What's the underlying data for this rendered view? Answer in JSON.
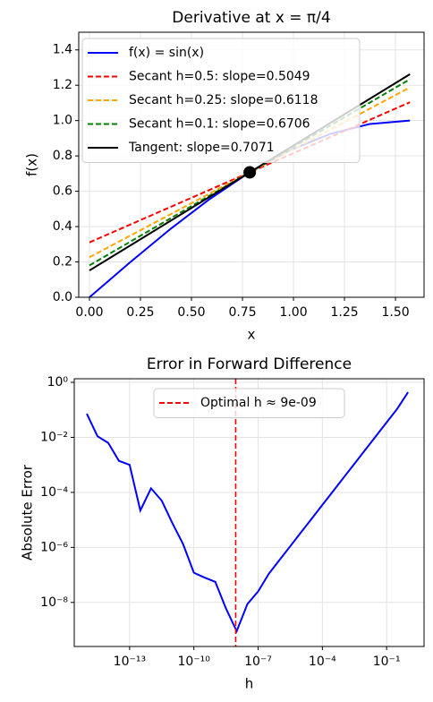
{
  "chart_data": [
    {
      "type": "line",
      "title": "Derivative at x = π/4",
      "x_label": "x",
      "y_label": "f(x)",
      "xlim": [
        -0.0526,
        1.64
      ],
      "ylim": [
        0,
        1.5
      ],
      "xticks": [
        {
          "value": 0,
          "label": "0.00"
        },
        0.25,
        {
          "value": 0.5,
          "label": "0.50"
        },
        0.75,
        {
          "value": 1,
          "label": "1.00"
        },
        1.25,
        {
          "value": 1.5,
          "label": "1.50"
        }
      ],
      "yticks": [
        {
          "value": 0,
          "label": "0.0"
        },
        0.2,
        0.4,
        0.6,
        0.8,
        {
          "value": 1,
          "label": "1.0"
        },
        1.2,
        1.4
      ],
      "grid": true,
      "legend": "upper left",
      "series": [
        {
          "name": "f(x) = sin(x)",
          "color": "#0000ff",
          "linestyle": "-",
          "x": [
            0,
            0.1963,
            0.3927,
            0.589,
            0.7854,
            0.9817,
            1.1781,
            1.3744,
            1.5708
          ],
          "values": [
            0,
            0.1951,
            0.3827,
            0.5556,
            0.7071,
            0.8315,
            0.9239,
            0.9808,
            1.0
          ]
        },
        {
          "name": "Secant h=0.5: slope=0.5049",
          "color": "#ff0000",
          "linestyle": "--",
          "x": [
            0,
            1.5708
          ],
          "values": [
            0.3105,
            1.1037
          ]
        },
        {
          "name": "Secant h=0.25: slope=0.6118",
          "color": "#ffa500",
          "linestyle": "--",
          "x": [
            0,
            1.5708
          ],
          "values": [
            0.2266,
            1.1876
          ]
        },
        {
          "name": "Secant h=0.1: slope=0.6706",
          "color": "#008000",
          "linestyle": "--",
          "x": [
            0,
            1.5708
          ],
          "values": [
            0.1804,
            1.2338
          ]
        },
        {
          "name": "Tangent: slope=0.7071",
          "color": "#000000",
          "linestyle": "-",
          "x": [
            0,
            1.5708
          ],
          "values": [
            0.1517,
            1.2625
          ]
        }
      ],
      "point": {
        "x": 0.7854,
        "y": 0.7071,
        "color": "#000000"
      }
    },
    {
      "type": "line",
      "title": "Error in Forward Difference",
      "x_label": "h",
      "y_label": "Absolute Error",
      "xlog": true,
      "ylog": true,
      "xlim": [
        2.6e-16,
        5.6
      ],
      "ylim": [
        2.5e-10,
        1.35
      ],
      "xticks": [
        {
          "value": 1e-13,
          "label": "10⁻¹³"
        },
        {
          "value": 1e-10,
          "label": "10⁻¹⁰"
        },
        {
          "value": 1e-07,
          "label": "10⁻⁷"
        },
        {
          "value": 0.0001,
          "label": "10⁻⁴"
        },
        {
          "value": 0.1,
          "label": "10⁻¹"
        }
      ],
      "yticks": [
        {
          "value": 1e-08,
          "label": "10⁻⁸"
        },
        {
          "value": 1e-06,
          "label": "10⁻⁶"
        },
        {
          "value": 0.0001,
          "label": "10⁻⁴"
        },
        {
          "value": 0.01,
          "label": "10⁻²"
        },
        {
          "value": 1,
          "label": "10⁰"
        }
      ],
      "grid": true,
      "legend": "upper center",
      "series": [
        {
          "name": null,
          "color": "#0000ff",
          "linestyle": "-",
          "x": [
            1e-15,
            3.16e-15,
            1e-14,
            3.16e-14,
            1e-13,
            3.16e-13,
            1e-12,
            3.16e-12,
            1e-11,
            3.16e-11,
            1e-10,
            3.16e-10,
            1e-09,
            3.16e-09,
            1e-08,
            3.16e-08,
            1e-07,
            3.16e-07,
            1e-06,
            3.16e-06,
            1e-05,
            3.16e-05,
            0.0001,
            0.000316,
            0.001,
            0.00316,
            0.01,
            0.0316,
            0.1,
            0.316,
            1
          ],
          "values": [
            0.072,
            0.011,
            0.0063,
            0.0014,
            0.001,
            2.2e-05,
            0.00014,
            5e-05,
            7.5e-06,
            1.3e-06,
            1.2e-07,
            8e-08,
            5.6e-08,
            6e-09,
            9e-10,
            8.7e-09,
            2.5e-08,
            1.1e-07,
            3.5e-07,
            1.1e-06,
            3.5e-06,
            1.1e-05,
            3.5e-05,
            0.00011,
            0.00035,
            0.0011,
            0.0035,
            0.011,
            0.035,
            0.11,
            0.437
          ]
        }
      ],
      "vline": {
        "x": 9e-09,
        "name": "Optimal h ≈ 9e-09",
        "color": "#ff0000",
        "linestyle": "--"
      }
    }
  ]
}
